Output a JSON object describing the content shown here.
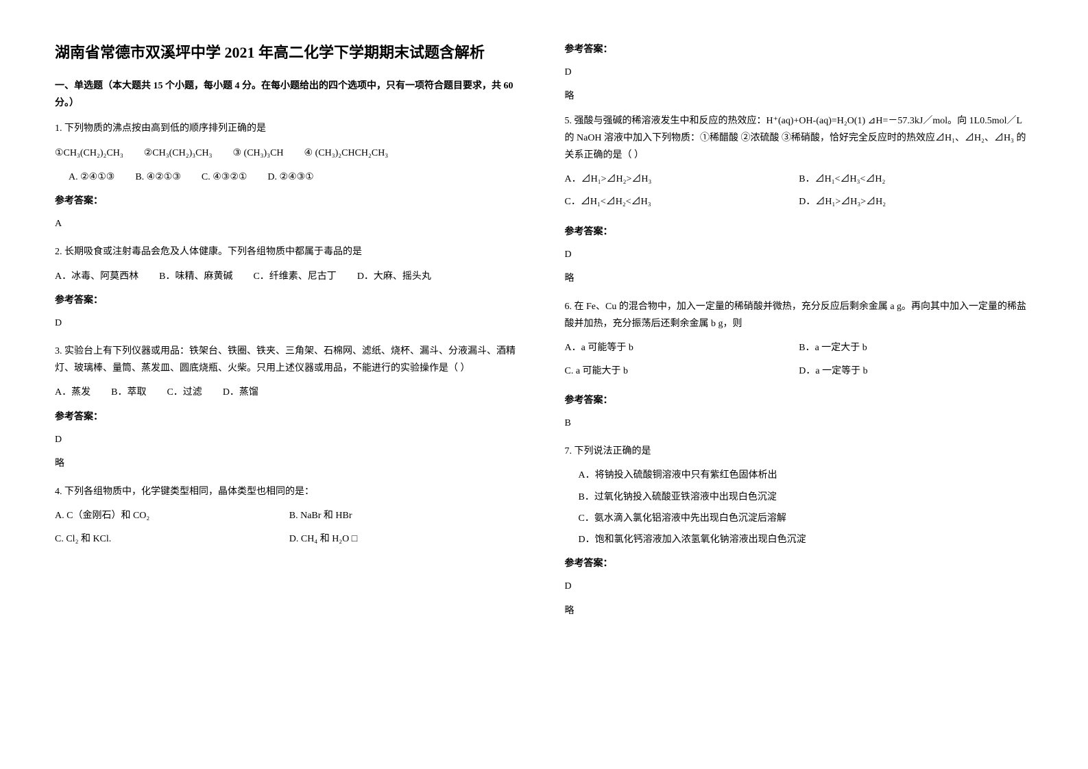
{
  "title": "湖南省常德市双溪坪中学 2021 年高二化学下学期期末试题含解析",
  "section_heading": "一、单选题（本大题共 15 个小题，每小题 4 分。在每小题给出的四个选项中，只有一项符合题目要求，共 60 分。）",
  "answer_label": "参考答案：",
  "omit": "略",
  "q1": {
    "text": "1. 下列物质的沸点按由高到低的顺序排列正确的是",
    "opt1": "①CH₃(CH₂)₂CH₃",
    "opt2": "②CH₃(CH₂)₃CH₃",
    "opt3": "③  (CH₃)₃CH",
    "opt4": "④  (CH₃)₂CHCH₂CH₃",
    "a": "A.  ②④①③",
    "b": "B.  ④②①③",
    "c": "C.  ④③②①",
    "d": "D.  ②④③①",
    "answer": "A"
  },
  "q2": {
    "text": "2. 长期吸食或注射毒品会危及人体健康。下列各组物质中都属于毒品的是",
    "a": "A．冰毒、阿莫西林",
    "b": "B．味精、麻黄碱",
    "c": "C．纤维素、尼古丁",
    "d": "D．大麻、摇头丸",
    "answer": "D"
  },
  "q3": {
    "text": "3. 实验台上有下列仪器或用品：铁架台、铁圈、铁夹、三角架、石棉网、滤纸、烧杯、漏斗、分液漏斗、酒精灯、玻璃棒、量筒、蒸发皿、圆底烧瓶、火柴。只用上述仪器或用品，不能进行的实验操作是（  ）",
    "a": "A．蒸发",
    "b": "B．萃取",
    "c": "C．过滤",
    "d": "D．蒸馏",
    "answer": "D"
  },
  "q4": {
    "text": "4. 下列各组物质中，化学键类型相同，晶体类型也相同的是：",
    "a": "A. C（金刚石）和 CO₂",
    "b": "B. NaBr 和 HBr",
    "c": "C.  Cl₂ 和 KCl.",
    "d": "D. CH₄ 和 H₂O  □",
    "answer": "D"
  },
  "q5": {
    "text": "5. 强酸与强碱的稀溶液发生中和反应的热效应：H⁺(aq)+OH-(aq)=H₂O(1)  ⊿H=－57.3kJ／mol。向 1L0.5mol／L 的 NaOH 溶液中加入下列物质：①稀醋酸  ②浓硫酸  ③稀硝酸，恰好完全反应时的热效应⊿H₁、⊿H₂、⊿H₃ 的关系正确的是（  ）",
    "a": "A．⊿H₁>⊿H₂>⊿H₃",
    "b": "B．⊿H₁<⊿H₃<⊿H₂",
    "c": "C．⊿H₁<⊿H₂<⊿H₃",
    "d": "D．⊿H₁>⊿H₃>⊿H₂",
    "answer": "D"
  },
  "q6": {
    "text": "6. 在 Fe、Cu 的混合物中，加入一定量的稀硝酸并微热，充分反应后剩余金属 a g。再向其中加入一定量的稀盐酸并加热，充分振荡后还剩余金属 b g，则",
    "a": "A．a 可能等于 b",
    "b": "B．a 一定大于 b",
    "c": "C. a 可能大于 b",
    "d": "D．a 一定等于 b",
    "answer": "B"
  },
  "q7": {
    "text": "7. 下列说法正确的是",
    "a": "A．将钠投入硫酸铜溶液中只有紫红色固体析出",
    "b": "B．过氧化钠投入硫酸亚铁溶液中出现白色沉淀",
    "c": "C．氨水滴入氯化铝溶液中先出现白色沉淀后溶解",
    "d": "D．饱和氯化钙溶液加入浓氢氧化钠溶液出现白色沉淀",
    "answer": "D"
  }
}
